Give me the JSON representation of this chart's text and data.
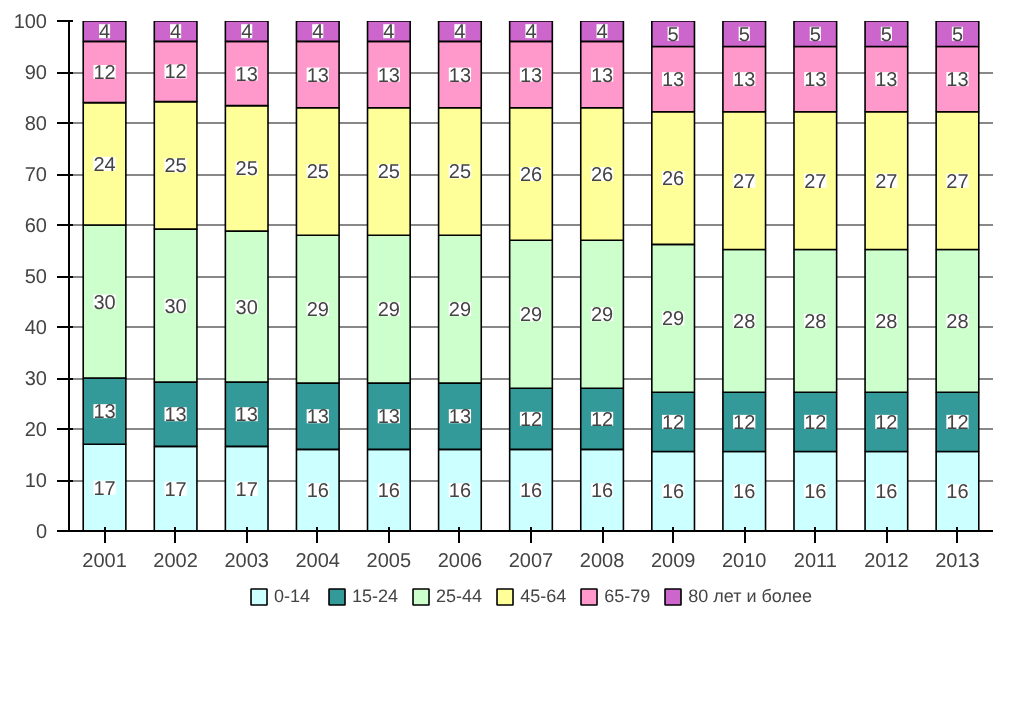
{
  "chart_data": {
    "type": "bar",
    "stacked": true,
    "categories": [
      "2001",
      "2002",
      "2003",
      "2004",
      "2005",
      "2006",
      "2007",
      "2008",
      "2009",
      "2010",
      "2011",
      "2012",
      "2013"
    ],
    "series": [
      {
        "name": "0-14",
        "color": "#ccffff",
        "values": [
          17,
          16.6,
          16.6,
          16,
          16,
          16,
          16,
          16,
          15.6,
          15.6,
          15.6,
          15.6,
          15.6
        ],
        "value_labels": [
          "17",
          "17",
          "17",
          "16",
          "16",
          "16",
          "16",
          "16",
          "16",
          "16",
          "16",
          "16",
          "16"
        ]
      },
      {
        "name": "15-24",
        "color": "#339999",
        "values": [
          13,
          12.6,
          12.6,
          13,
          13,
          13,
          12,
          12,
          11.6,
          11.6,
          11.6,
          11.6,
          11.6
        ],
        "value_labels": [
          "13",
          "13",
          "13",
          "13",
          "13",
          "13",
          "12",
          "12",
          "12",
          "12",
          "12",
          "12",
          "12"
        ]
      },
      {
        "name": "25-44",
        "color": "#ccffcc",
        "values": [
          30,
          30,
          29.6,
          29,
          29,
          29,
          29,
          29,
          29,
          28,
          28,
          28,
          28
        ],
        "value_labels": [
          "30",
          "30",
          "30",
          "29",
          "29",
          "29",
          "29",
          "29",
          "29",
          "28",
          "28",
          "28",
          "28"
        ]
      },
      {
        "name": "45-64",
        "color": "#ffff99",
        "values": [
          24,
          25,
          24.6,
          25,
          25,
          25,
          26,
          26,
          26,
          27,
          27,
          27,
          27
        ],
        "value_labels": [
          "24",
          "25",
          "25",
          "25",
          "25",
          "25",
          "26",
          "26",
          "26",
          "27",
          "27",
          "27",
          "27"
        ]
      },
      {
        "name": "65-79",
        "color": "#ff99cc",
        "values": [
          12,
          11.8,
          12.6,
          13,
          13,
          13,
          13,
          13,
          12.8,
          12.8,
          12.8,
          12.8,
          12.8
        ],
        "value_labels": [
          "12",
          "12",
          "13",
          "13",
          "13",
          "13",
          "13",
          "13",
          "13",
          "13",
          "13",
          "13",
          "13"
        ]
      },
      {
        "name": "80 лет и более",
        "color": "#cc66cc",
        "values": [
          4,
          4,
          4,
          4,
          4,
          4,
          4,
          4,
          5,
          5,
          5,
          5,
          5
        ],
        "value_labels": [
          "4",
          "4",
          "4",
          "4",
          "4",
          "4",
          "4",
          "4",
          "5",
          "5",
          "5",
          "5",
          "5"
        ]
      }
    ],
    "ylim": [
      0,
      100
    ],
    "yticks": [
      0,
      10,
      20,
      30,
      40,
      50,
      60,
      70,
      80,
      90,
      100
    ],
    "grid": "y",
    "legend": "bottom"
  }
}
